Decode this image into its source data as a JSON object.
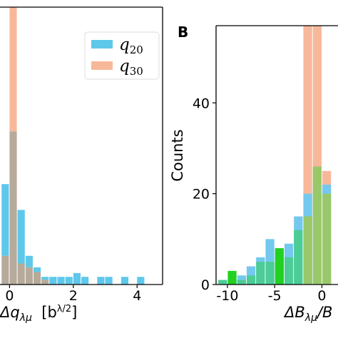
{
  "figure": {
    "panel_b_letter": "B",
    "left_xlabel_main": "Δq",
    "left_xlabel_sub": "λμ",
    "left_xlabel_unit_base": "[b",
    "left_xlabel_unit_exp": "λ/2",
    "left_xlabel_unit_close": "]",
    "right_ylabel": "Counts",
    "right_xlabel_main": "ΔB",
    "right_xlabel_sub": "λμ",
    "right_xlabel_rest": "/B"
  },
  "chart_data": [
    {
      "type": "bar",
      "panel": "A",
      "xlim": [
        -0.3,
        4.8
      ],
      "ylim": [
        0,
        29
      ],
      "x_ticks": [
        0,
        2,
        4
      ],
      "x_tick_labels": [
        "0",
        "2",
        "4"
      ],
      "bin_width": 0.25,
      "legend_position": "top-right",
      "colors": {
        "q20": "#5ec8ea",
        "q30": "#f7b89a",
        "overlap": "#b6aa9b"
      },
      "series": [
        {
          "name": "q20",
          "legend_label_main": "q",
          "legend_label_sub": "20",
          "color": "#5ec8ea",
          "bins": [
            {
              "x": -0.25,
              "count": 10.5
            },
            {
              "x": 0.0,
              "count": 16.0
            },
            {
              "x": 0.25,
              "count": 7.8
            },
            {
              "x": 0.5,
              "count": 3.0
            },
            {
              "x": 0.75,
              "count": 1.8
            },
            {
              "x": 1.0,
              "count": 0.8
            },
            {
              "x": 1.25,
              "count": 0.8
            },
            {
              "x": 1.5,
              "count": 0.8
            },
            {
              "x": 1.75,
              "count": 0.8
            },
            {
              "x": 2.0,
              "count": 1.2
            },
            {
              "x": 2.25,
              "count": 0.8
            },
            {
              "x": 2.75,
              "count": 0.8
            },
            {
              "x": 3.0,
              "count": 0.8
            },
            {
              "x": 3.5,
              "count": 0.8
            },
            {
              "x": 4.0,
              "count": 0.8
            }
          ]
        },
        {
          "name": "q30",
          "legend_label_main": "q",
          "legend_label_sub": "30",
          "color": "#f7b89a",
          "bins": [
            {
              "x": -0.25,
              "count": 3.0
            },
            {
              "x": 0.0,
              "count": 29.0
            },
            {
              "x": 0.25,
              "count": 2.2
            },
            {
              "x": 0.5,
              "count": 1.8
            },
            {
              "x": 0.75,
              "count": 1.3
            },
            {
              "x": 1.0,
              "count": 0.5
            }
          ]
        }
      ]
    },
    {
      "type": "bar",
      "panel": "B",
      "xlim": [
        -11.2,
        1.7
      ],
      "ylim": [
        0,
        57
      ],
      "x_ticks": [
        -10,
        -5,
        0
      ],
      "x_tick_labels": [
        "-10",
        "-5",
        "0"
      ],
      "y_ticks": [
        0,
        20,
        40
      ],
      "y_tick_labels": [
        "0",
        "20",
        "40"
      ],
      "bin_width": 1.0,
      "colors": {
        "blue": "#74c8ee",
        "orange": "#f7b89a",
        "green": "#22d022",
        "blue_green_overlap": "#4ccc96",
        "orange_green_overlap": "#99c86a"
      },
      "series": [
        {
          "name": "blue",
          "color": "#74c8ee",
          "bins": [
            {
              "x": -10.5,
              "count": 1
            },
            {
              "x": -9.5,
              "count": 1
            },
            {
              "x": -8.5,
              "count": 2
            },
            {
              "x": -7.5,
              "count": 4
            },
            {
              "x": -6.5,
              "count": 6
            },
            {
              "x": -5.5,
              "count": 10
            },
            {
              "x": -4.5,
              "count": 7
            },
            {
              "x": -3.5,
              "count": 9
            },
            {
              "x": -2.5,
              "count": 15
            },
            {
              "x": -1.5,
              "count": 20
            },
            {
              "x": -0.5,
              "count": 21
            },
            {
              "x": 0.5,
              "count": 22
            }
          ]
        },
        {
          "name": "orange",
          "color": "#f7b89a",
          "bins": [
            {
              "x": -1.5,
              "count": 57
            },
            {
              "x": -0.5,
              "count": 57
            },
            {
              "x": 0.5,
              "count": 25
            }
          ]
        },
        {
          "name": "green",
          "color": "#22d022",
          "bins": [
            {
              "x": -10.5,
              "count": 1
            },
            {
              "x": -9.5,
              "count": 3
            },
            {
              "x": -8.5,
              "count": 1
            },
            {
              "x": -7.5,
              "count": 2
            },
            {
              "x": -6.5,
              "count": 5
            },
            {
              "x": -5.5,
              "count": 5
            },
            {
              "x": -4.5,
              "count": 8
            },
            {
              "x": -3.5,
              "count": 6
            },
            {
              "x": -2.5,
              "count": 12
            },
            {
              "x": -1.5,
              "count": 15
            },
            {
              "x": -0.5,
              "count": 26
            },
            {
              "x": 0.5,
              "count": 20
            }
          ]
        }
      ]
    }
  ]
}
